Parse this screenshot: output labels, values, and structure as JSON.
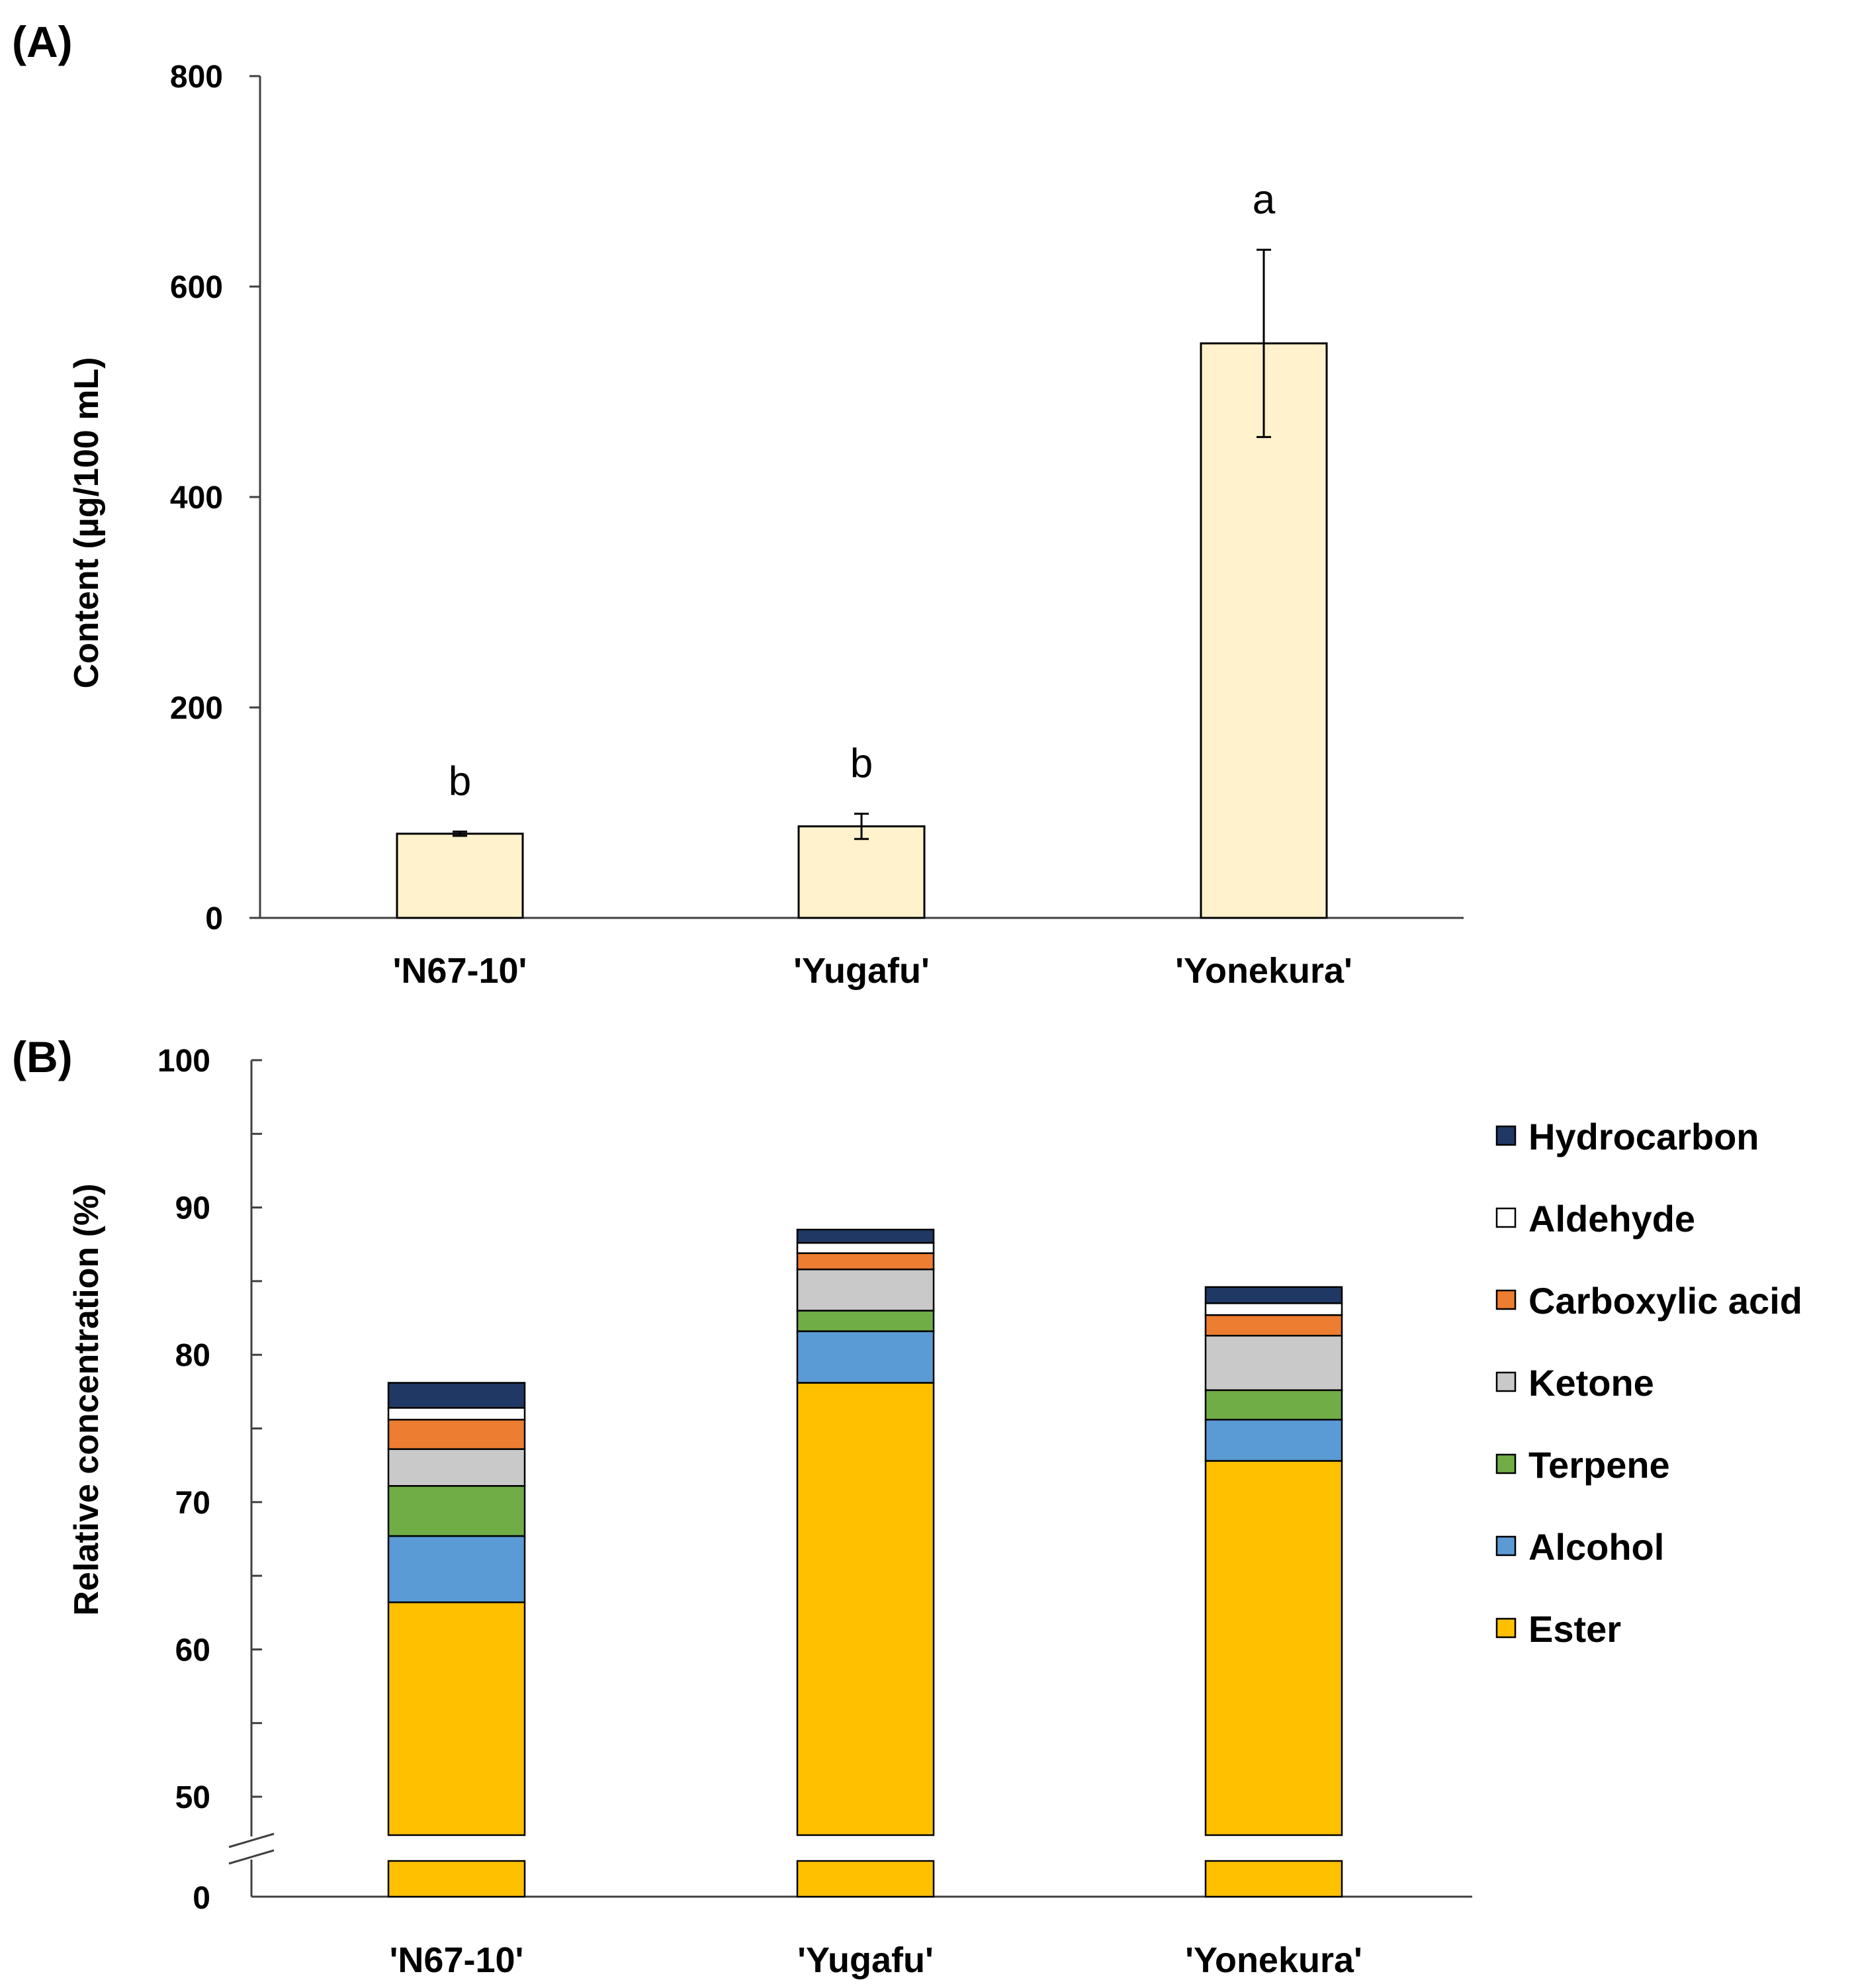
{
  "chart_data": [
    {
      "panel": "(A)",
      "type": "bar",
      "ylabel": "Content (µg/100 mL)",
      "xlabel": "",
      "ylim": [
        0,
        800
      ],
      "yticks": [
        0,
        200,
        400,
        600,
        800
      ],
      "categories": [
        "'N67-10'",
        "'Yugafu'",
        "'Yonekura'"
      ],
      "values": [
        80,
        87,
        546
      ],
      "errors": [
        2,
        12,
        89
      ],
      "significance": [
        "b",
        "b",
        "a"
      ],
      "bar_color": "#FFF2CC"
    },
    {
      "panel": "(B)",
      "type": "bar",
      "stacked": true,
      "ylabel": "Relative concentration  (%)",
      "xlabel": "",
      "ylim": [
        0,
        100
      ],
      "axis_break": [
        0,
        47
      ],
      "yticks": [
        0,
        50,
        60,
        70,
        80,
        90,
        100
      ],
      "categories": [
        "'N67-10'",
        "'Yugafu'",
        "'Yonekura'"
      ],
      "series": [
        {
          "name": "Ester",
          "color": "#FFC000",
          "values": [
            63.2,
            78.1,
            72.8
          ]
        },
        {
          "name": "Alcohol",
          "color": "#5B9BD5",
          "values": [
            4.5,
            3.5,
            2.8
          ]
        },
        {
          "name": "Terpene",
          "color": "#70AD47",
          "values": [
            3.4,
            1.4,
            2.0
          ]
        },
        {
          "name": "Ketone",
          "color": "#C9C9C9",
          "values": [
            2.5,
            2.8,
            3.7
          ]
        },
        {
          "name": "Carboxylic acid",
          "color": "#ED7D31",
          "values": [
            2.0,
            1.1,
            1.4
          ]
        },
        {
          "name": "Aldehyde",
          "color": "#FFFFFF",
          "values": [
            0.8,
            0.7,
            0.8
          ]
        },
        {
          "name": "Hydrocarbon",
          "color": "#203864",
          "values": [
            1.7,
            0.9,
            1.1
          ]
        }
      ],
      "legend_position": "right"
    }
  ]
}
